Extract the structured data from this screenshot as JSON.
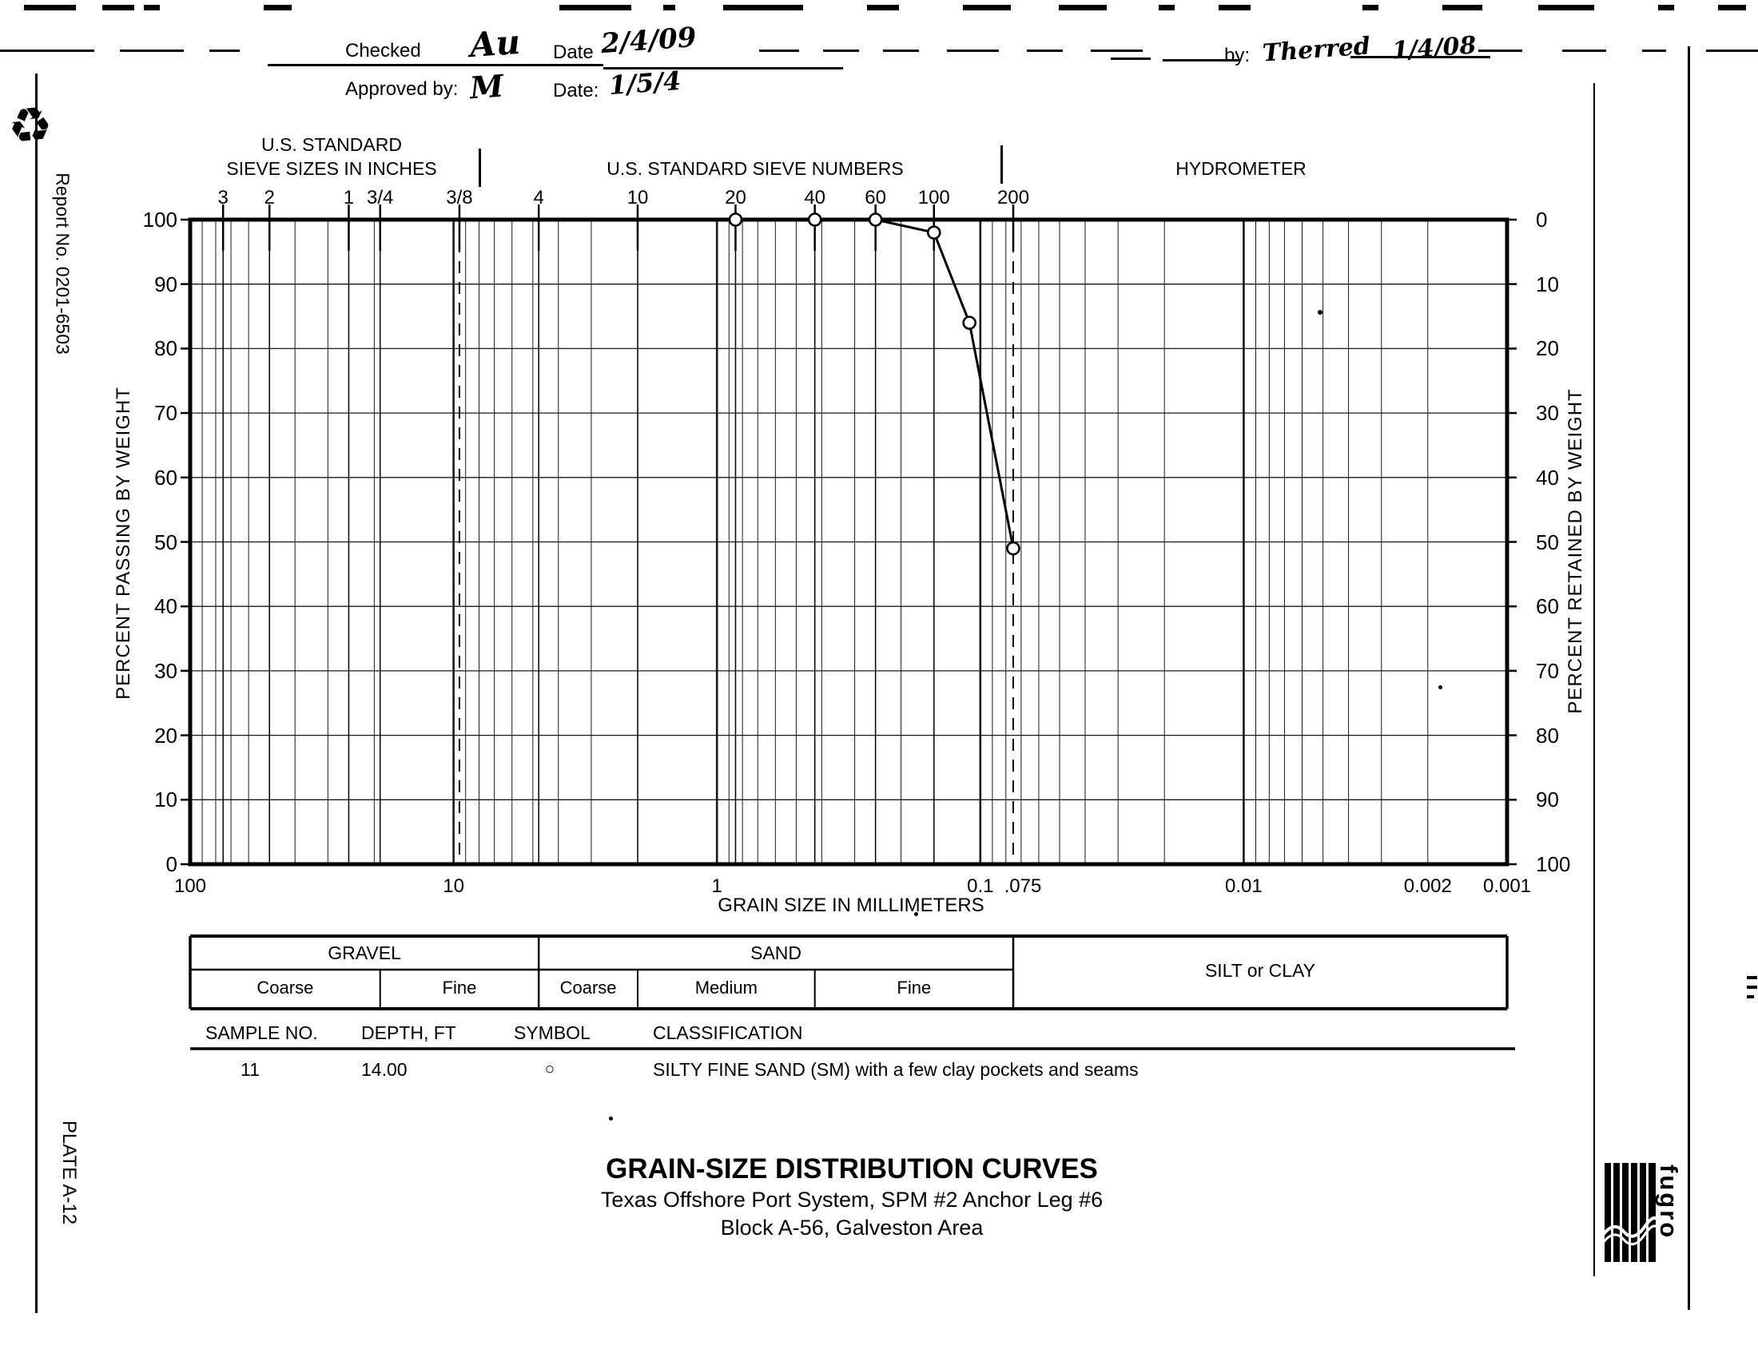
{
  "page": {
    "report_no": "Report No. 0201-6503",
    "plate": "PLATE A-12",
    "recycle_icon": "♻"
  },
  "header": {
    "checked_label": "Checked",
    "checked_value": "Au",
    "date1_label": "Date",
    "date1_value": "2/4/09",
    "approved_label": "Approved by:",
    "approved_value": "M",
    "date2_label": "Date:",
    "date2_value": "1/5/4",
    "right_by_label": "by:",
    "right_by_value": "Therred",
    "right_date_value": "1/4/08"
  },
  "chart_data": {
    "type": "line",
    "title": "GRAIN-SIZE DISTRIBUTION CURVES",
    "x_axis": {
      "label": "GRAIN SIZE IN MILLIMETERS",
      "scale": "log",
      "max_mm": 100,
      "min_mm": 0.001,
      "ticks": [
        {
          "label": "100",
          "mm": 100
        },
        {
          "label": "10",
          "mm": 10
        },
        {
          "label": "1",
          "mm": 1
        },
        {
          "label": "0.1",
          "mm": 0.1
        },
        {
          "label": ".075",
          "mm": 0.075
        },
        {
          "label": "0.01",
          "mm": 0.01
        },
        {
          "label": "0.002",
          "mm": 0.002
        },
        {
          "label": "0.001",
          "mm": 0.001
        }
      ]
    },
    "y_axis_left": {
      "label": "PERCENT PASSING BY WEIGHT",
      "min": 0,
      "max": 100,
      "tick_step": 10
    },
    "y_axis_right": {
      "label": "PERCENT RETAINED BY WEIGHT",
      "min": 0,
      "max": 100,
      "tick_step": 10
    },
    "top_headers": {
      "inches_line1": "U.S. STANDARD",
      "inches_line2": "SIEVE SIZES IN INCHES",
      "numbers": "U.S. STANDARD SIEVE NUMBERS",
      "hydrometer": "HYDROMETER"
    },
    "sieves": [
      {
        "label": "3",
        "mm": 75
      },
      {
        "label": "2",
        "mm": 50
      },
      {
        "label": "1",
        "mm": 25
      },
      {
        "label": "3/4",
        "mm": 19
      },
      {
        "label": "3/8",
        "mm": 9.5
      },
      {
        "label": "4",
        "mm": 4.75
      },
      {
        "label": "10",
        "mm": 2
      },
      {
        "label": "20",
        "mm": 0.85
      },
      {
        "label": "40",
        "mm": 0.425
      },
      {
        "label": "60",
        "mm": 0.25
      },
      {
        "label": "100",
        "mm": 0.15
      },
      {
        "label": "200",
        "mm": 0.075
      }
    ],
    "dashed_mm": [
      9.5,
      0.075
    ],
    "grid": "semilog",
    "legend_position": "none",
    "series": [
      {
        "name": "Sample 11",
        "symbol": "circle",
        "points": [
          {
            "mm": 0.85,
            "percent_passing": 100
          },
          {
            "mm": 0.425,
            "percent_passing": 100
          },
          {
            "mm": 0.25,
            "percent_passing": 100
          },
          {
            "mm": 0.15,
            "percent_passing": 98
          },
          {
            "mm": 0.11,
            "percent_passing": 84
          },
          {
            "mm": 0.075,
            "percent_passing": 49
          }
        ]
      }
    ]
  },
  "size_table": {
    "groups": [
      {
        "label": "GRAVEL",
        "from_mm": 100,
        "to_mm": 4.75,
        "two_row": false
      },
      {
        "label": "SAND",
        "from_mm": 4.75,
        "to_mm": 0.075,
        "two_row": false
      },
      {
        "label": "SILT or CLAY",
        "from_mm": 0.075,
        "to_mm": 0.001,
        "two_row": true
      }
    ],
    "subcols": [
      {
        "label": "Coarse",
        "from_mm": 100,
        "to_mm": 19
      },
      {
        "label": "Fine",
        "from_mm": 19,
        "to_mm": 4.75
      },
      {
        "label": "Coarse",
        "from_mm": 4.75,
        "to_mm": 2
      },
      {
        "label": "Medium",
        "from_mm": 2,
        "to_mm": 0.425
      },
      {
        "label": "Fine",
        "from_mm": 0.425,
        "to_mm": 0.075
      }
    ]
  },
  "sample_table": {
    "headers": [
      "SAMPLE NO.",
      "DEPTH, FT",
      "SYMBOL",
      "CLASSIFICATION"
    ],
    "row": {
      "sample_no": "11",
      "depth_ft": "14.00",
      "symbol": "○",
      "classification": "SILTY FINE SAND (SM) with a few clay pockets and seams"
    }
  },
  "title_block": {
    "title": "GRAIN-SIZE DISTRIBUTION CURVES",
    "subtitle1": "Texas Offshore Port System, SPM #2 Anchor Leg #6",
    "subtitle2": "Block A-56, Galveston Area"
  },
  "logo": {
    "text": "fugro"
  }
}
